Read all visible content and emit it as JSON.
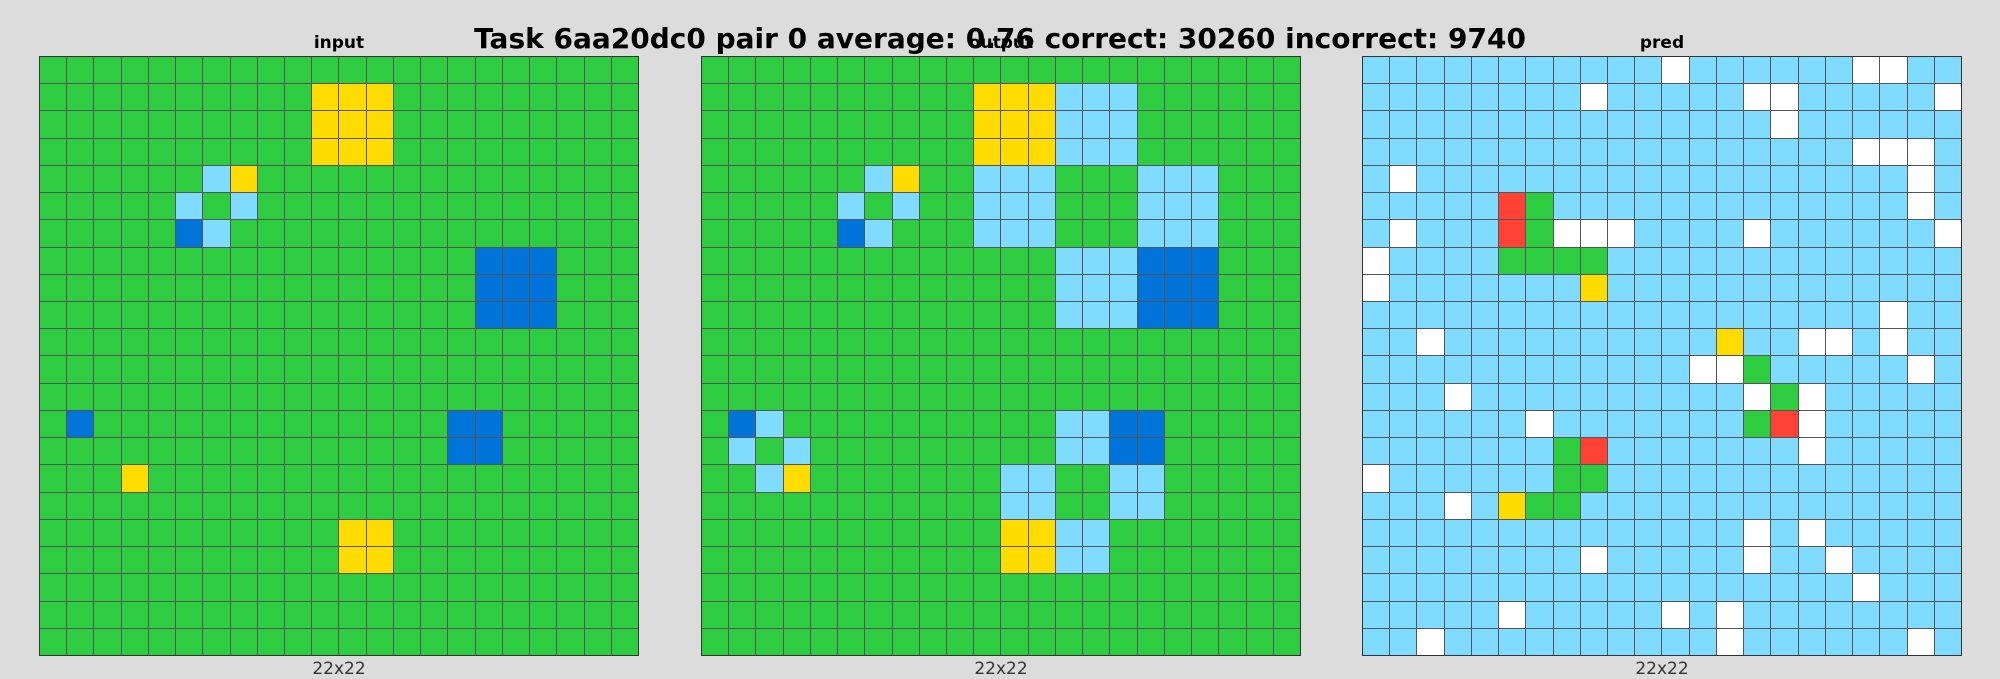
{
  "title": "Task 6aa20dc0 pair 0 average: 0.76 correct: 30260 incorrect: 9740",
  "palette": {
    "G": "#2ecc40",
    "Y": "#ffdc00",
    "L": "#7fdbff",
    "B": "#0074d9",
    "W": "#ffffff",
    "R": "#ff4136"
  },
  "panels": [
    {
      "label": "input",
      "size_label": "22x22",
      "rows": [
        "GGGGGGGGGGGGGGGGGGGGGG",
        "GGGGGGGGGGYYYGGGGGGGGG",
        "GGGGGGGGGGYYYGGGGGGGGG",
        "GGGGGGGGGGYYYGGGGGGGGG",
        "GGGGGGLYGGGGGGGGGGGGGG",
        "GGGGGLGLGGGGGGGGGGGGGG",
        "GGGGGBLGGGGGGGGGGGGGGG",
        "GGGGGGGGGGGGGGGGBBBGGG",
        "GGGGGGGGGGGGGGGGBBBGGG",
        "GGGGGGGGGGGGGGGGBBBGGG",
        "GGGGGGGGGGGGGGGGGGGGGG",
        "GGGGGGGGGGGGGGGGGGGGGG",
        "GGGGGGGGGGGGGGGGGGGGGG",
        "GBGGGGGGGGGGGGGBBGGGGG",
        "GGGGGGGGGGGGGGGBBGGGGG",
        "GGGYGGGGGGGGGGGGGGGGGG",
        "GGGGGGGGGGGGGGGGGGGGGG",
        "GGGGGGGGGGGYYGGGGGGGGG",
        "GGGGGGGGGGGYYGGGGGGGGG",
        "GGGGGGGGGGGGGGGGGGGGGG",
        "GGGGGGGGGGGGGGGGGGGGGG",
        "GGGGGGGGGGGGGGGGGGGGGG"
      ]
    },
    {
      "label": "output",
      "size_label": "22x22",
      "rows": [
        "GGGGGGGGGGGGGGGGGGGGGG",
        "GGGGGGGGGGYYYLLLGGGGGG",
        "GGGGGGGGGGYYYLLLGGGGGG",
        "GGGGGGGGGGYYYLLLGGGGGG",
        "GGGGGGLYGGLLLGGGLLLGGG",
        "GGGGGLGLGGLLLGGGLLLGGG",
        "GGGGGBLGGGLLLGGGLLLGGG",
        "GGGGGGGGGGGGGLLLBBBGGG",
        "GGGGGGGGGGGGGLLLBBBGGG",
        "GGGGGGGGGGGGGLLLBBBGGG",
        "GGGGGGGGGGGGGGGGGGGGGG",
        "GGGGGGGGGGGGGGGGGGGGGG",
        "GGGGGGGGGGGGGGGGGGGGGG",
        "GBLGGGGGGGGGGLLBBGGGGG",
        "GLGLGGGGGGGGGLLBBGGGGG",
        "GGLYGGGGGGGLLGGLLGGGGG",
        "GGGGGGGGGGGLLGGLLGGGGG",
        "GGGGGGGGGGGYYLLGGGGGGG",
        "GGGGGGGGGGGYYLLGGGGGGG",
        "GGGGGGGGGGGGGGGGGGGGGG",
        "GGGGGGGGGGGGGGGGGGGGGG",
        "GGGGGGGGGGGGGGGGGGGGGG"
      ]
    },
    {
      "label": "pred",
      "size_label": "22x22",
      "rows": [
        "LLLLLLLLLLLWLLLLLLWWLL",
        "LLLLLLLLWLLLLLWWLLLLLW",
        "LLLLLLLLLLLLLLLWLLLLLL",
        "LLLLLLLLLLLLLLLLLLWWWL",
        "LWLLLLLLLLLLLLLLLLLLWL",
        "LLLLLRGLLLLLLLLLLLLLWL",
        "LWLLLRGWWWLLLLWLLLLLLW",
        "WLLLLGGGGLLLLLLLLLLLLL",
        "WLLLLLLLYLLLLLLLLLLLLL",
        "LLLLLLLLLLLLLLLLLLLWLL",
        "LLWLLLLLLLLLLYLLWWLWLL",
        "LLLLLLLLLLLLWWGLLLLLWL",
        "LLLWLLLLLLLLLLWGWLLLLL",
        "LLLLLLWLLLLLLLGRWLLLLL",
        "LLLLLLLGRLLLLLLLWLLLLL",
        "WLLLLLLGGLLLLLLLLLLLLL",
        "LLLWLYGGLLLLLLLLLLLLLL",
        "LLLLLLLLLLLLLLWLWLLLLL",
        "LLLLLLLLWLLLLLWLLWLLLL",
        "LLLLLLLLLLLLLLLLLLWLLL",
        "LLLLLWLLLLLWLWLLLLLLLL",
        "LLWLLLLLLLLLLWLLLLLLWL"
      ]
    }
  ]
}
